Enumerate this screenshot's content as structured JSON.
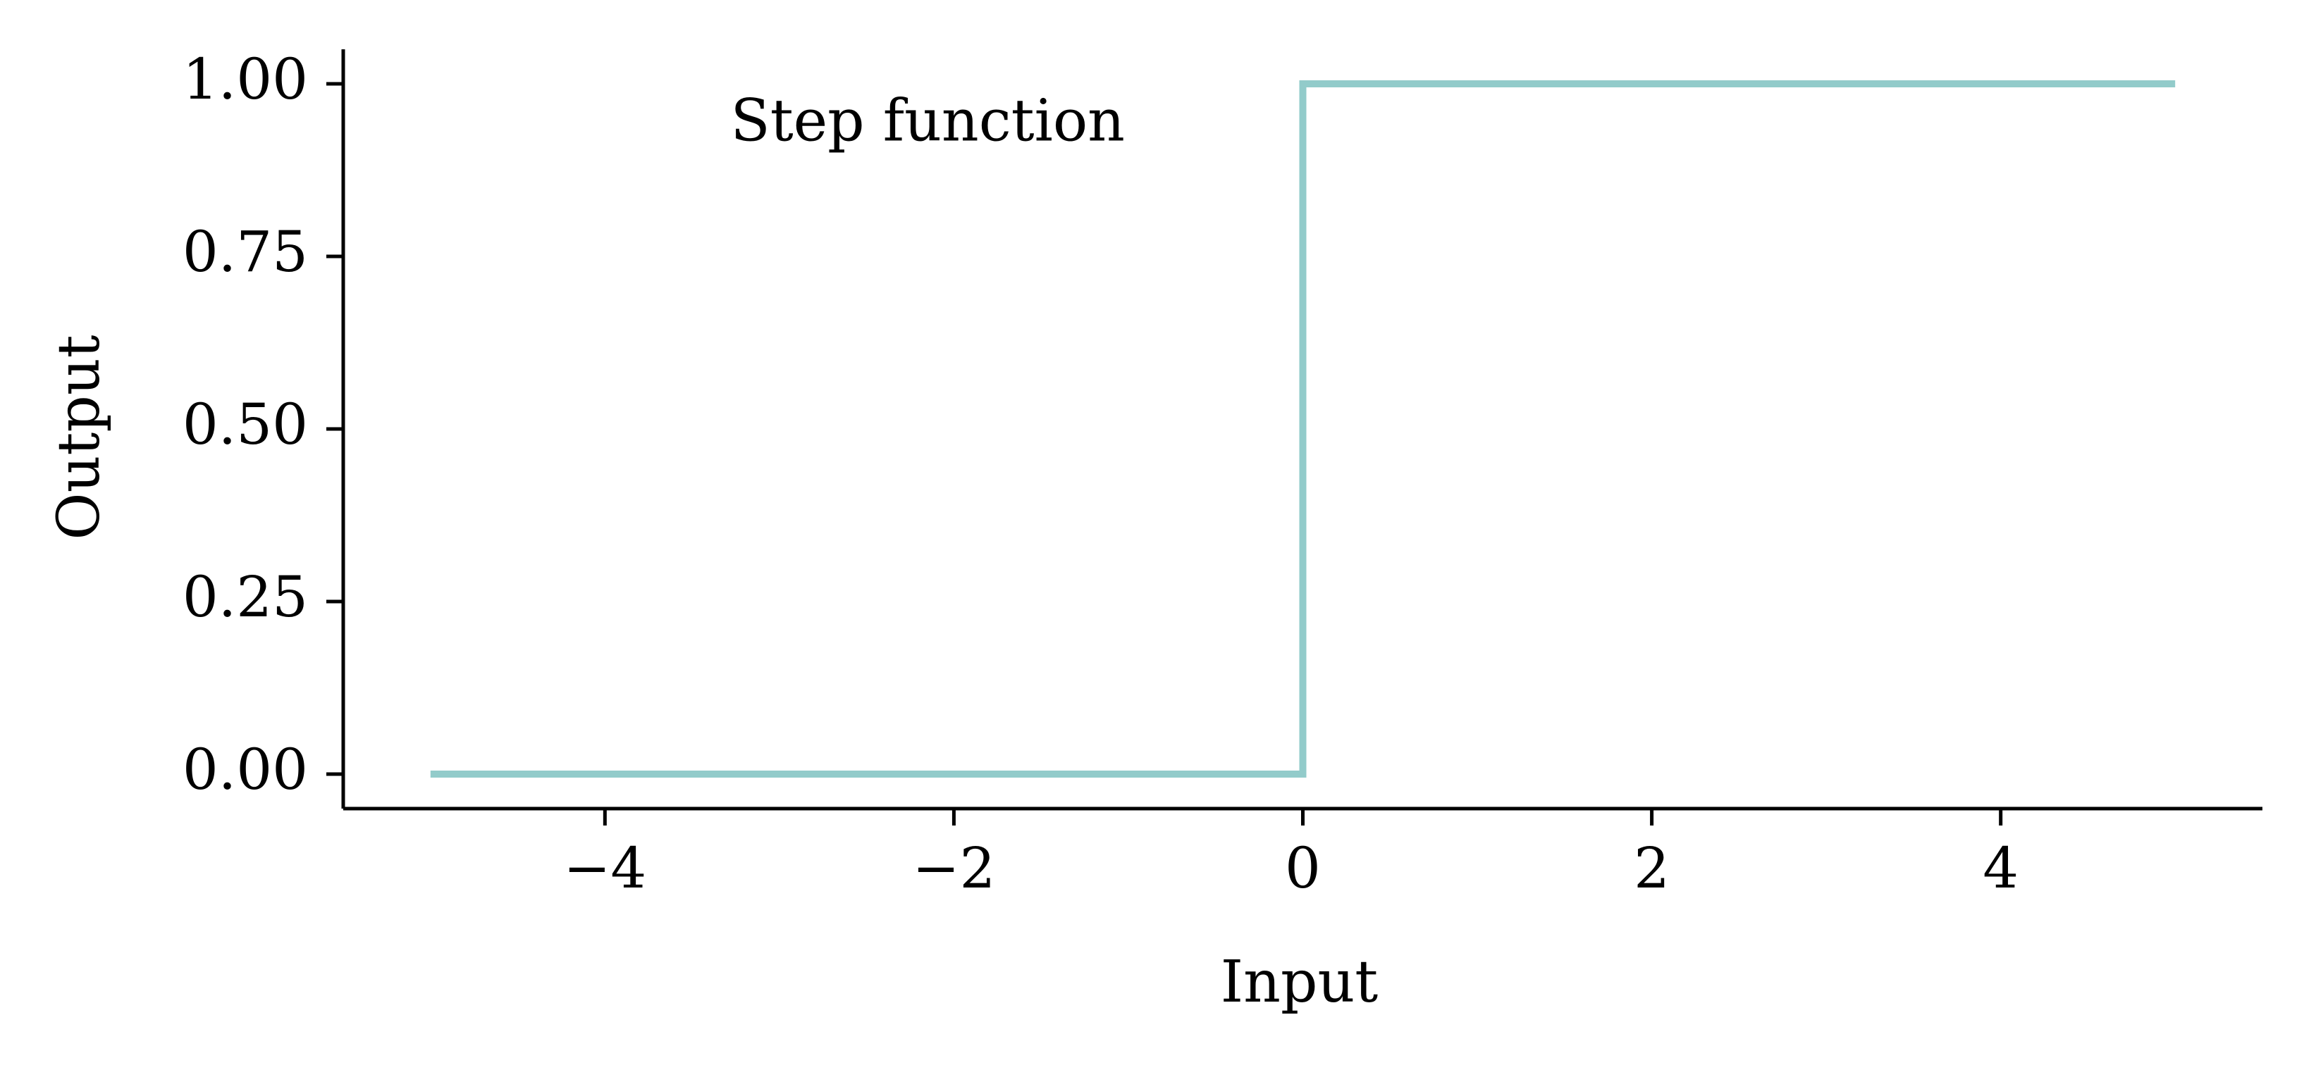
{
  "chart_data": {
    "type": "line",
    "title": "",
    "xlabel": "Input",
    "ylabel": "Output",
    "xlim": [
      -5.5,
      5.5
    ],
    "ylim": [
      -0.05,
      1.05
    ],
    "x_ticks": [
      -4,
      -2,
      0,
      2,
      4
    ],
    "x_tick_labels": [
      "−4",
      "−2",
      "0",
      "2",
      "4"
    ],
    "y_ticks": [
      0.0,
      0.25,
      0.5,
      0.75,
      1.0
    ],
    "y_tick_labels": [
      "0.00",
      "0.25",
      "0.50",
      "0.75",
      "1.00"
    ],
    "grid": false,
    "series": [
      {
        "color": "#92cbca",
        "x": [
          -5,
          0,
          0,
          5
        ],
        "y": [
          0,
          0,
          1,
          1
        ]
      }
    ],
    "annotations": [
      {
        "text": "Step function",
        "x": -2.15,
        "y": 0.95
      }
    ]
  }
}
